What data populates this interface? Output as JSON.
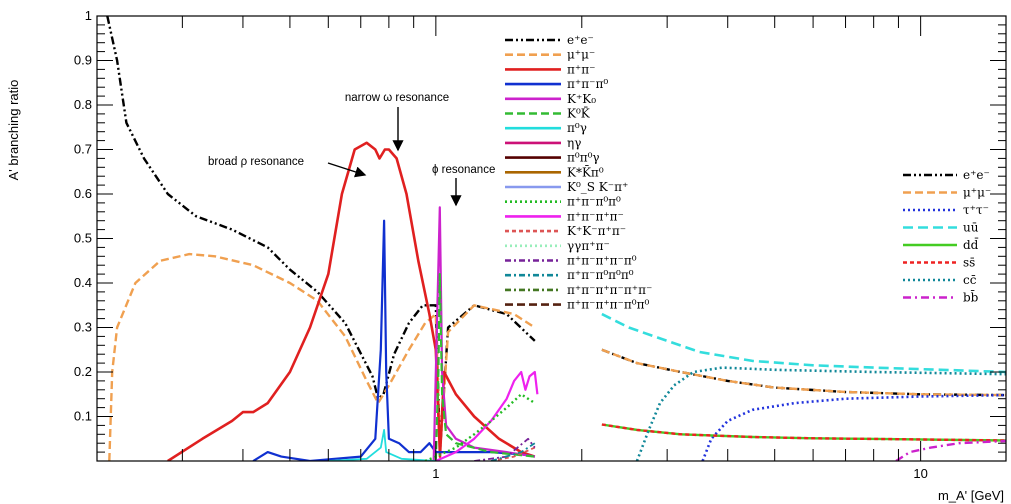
{
  "chart_data": {
    "type": "line",
    "xlabel": "m_A' [GeV]",
    "ylabel": "A' branching ratio",
    "x_scale": "log",
    "xlim": [
      0.2,
      15
    ],
    "ylim": [
      0,
      1
    ],
    "x_ticks": [
      {
        "value": 1,
        "label": "1"
      },
      {
        "value": 10,
        "label": "10"
      }
    ],
    "y_ticks": [
      {
        "value": 0.1,
        "label": "0.1"
      },
      {
        "value": 0.2,
        "label": "0.2"
      },
      {
        "value": 0.3,
        "label": "0.3"
      },
      {
        "value": 0.4,
        "label": "0.4"
      },
      {
        "value": 0.5,
        "label": "0.5"
      },
      {
        "value": 0.6,
        "label": "0.6"
      },
      {
        "value": 0.7,
        "label": "0.7"
      },
      {
        "value": 0.8,
        "label": "0.8"
      },
      {
        "value": 0.9,
        "label": "0.9"
      },
      {
        "value": 1.0,
        "label": "1"
      }
    ],
    "annotations": [
      {
        "text": "narrow ω resonance",
        "x": 0.78,
        "y": 0.71
      },
      {
        "text": "broad ρ resonance",
        "x": 0.64,
        "y": 0.66
      },
      {
        "text": "ϕ resonance",
        "x": 1.02,
        "y": 0.58
      }
    ],
    "legend_hadronic": [
      {
        "label": "e⁺e⁻",
        "color": "#000000",
        "dash": "8,3,2,3,2,3"
      },
      {
        "label": "μ⁺μ⁻",
        "color": "#f0a050",
        "dash": "8,4"
      },
      {
        "label": "π⁺π⁻",
        "color": "#e02020",
        "dash": ""
      },
      {
        "label": "π⁺π⁻π⁰",
        "color": "#1030d0",
        "dash": ""
      },
      {
        "label": "K⁺K₀",
        "color": "#cc22cc",
        "dash": ""
      },
      {
        "label": "K⁰K̄",
        "color": "#33bb33",
        "dash": "8,4"
      },
      {
        "label": "π⁰γ",
        "color": "#22dddd",
        "dash": ""
      },
      {
        "label": "ηγ",
        "color": "#cc1177",
        "dash": ""
      },
      {
        "label": "π⁰π⁰γ",
        "color": "#550000",
        "dash": ""
      },
      {
        "label": "K*K̄π⁰",
        "color": "#aa6600",
        "dash": ""
      },
      {
        "label": "K⁰_S K⁻π⁺",
        "color": "#8899ee",
        "dash": ""
      },
      {
        "label": "π⁺π⁻π⁰π⁰",
        "color": "#22bb22",
        "dash": "2,3"
      },
      {
        "label": "π⁺π⁻π⁺π⁻",
        "color": "#ee22ee",
        "dash": ""
      },
      {
        "label": "K⁺K⁻π⁺π⁻",
        "color": "#dd5555",
        "dash": "4,3"
      },
      {
        "label": "γγπ⁺π⁻",
        "color": "#99eebb",
        "dash": "2,3"
      },
      {
        "label": "π⁺π⁻π⁺π⁻π⁰",
        "color": "#772299",
        "dash": "6,3,2,3"
      },
      {
        "label": "π⁺π⁻π⁰π⁰π⁰",
        "color": "#118899",
        "dash": "6,3,2,3"
      },
      {
        "label": "π⁺π⁻π⁺π⁻π⁺π⁻",
        "color": "#447722",
        "dash": "6,3,2,3"
      },
      {
        "label": "π⁺π⁻π⁺π⁻π⁰π⁰",
        "color": "#552211",
        "dash": "8,4"
      }
    ],
    "legend_quark": [
      {
        "label": "e⁺e⁻",
        "color": "#000000",
        "dash": "8,3,2,3,2,3"
      },
      {
        "label": "μ⁺μ⁻",
        "color": "#f0a050",
        "dash": "8,4"
      },
      {
        "label": "τ⁺τ⁻",
        "color": "#2233dd",
        "dash": "2,3"
      },
      {
        "label": "uū",
        "color": "#33dddd",
        "dash": "10,5"
      },
      {
        "label": "dd̄",
        "color": "#44cc22",
        "dash": ""
      },
      {
        "label": "ss̄",
        "color": "#ee2222",
        "dash": "4,3"
      },
      {
        "label": "cc̄",
        "color": "#118899",
        "dash": "2,3"
      },
      {
        "label": "bb̄",
        "color": "#cc22cc",
        "dash": "8,4,2,4"
      }
    ],
    "series": [
      {
        "name": "e⁺e⁻",
        "color": "#000000",
        "dash": "8,3,2,3,2,3",
        "width": 2.4,
        "points": [
          [
            0.21,
            1.0
          ],
          [
            0.22,
            0.9
          ],
          [
            0.23,
            0.76
          ],
          [
            0.25,
            0.68
          ],
          [
            0.28,
            0.6
          ],
          [
            0.32,
            0.55
          ],
          [
            0.38,
            0.52
          ],
          [
            0.45,
            0.48
          ],
          [
            0.5,
            0.43
          ],
          [
            0.57,
            0.38
          ],
          [
            0.65,
            0.31
          ],
          [
            0.74,
            0.19
          ],
          [
            0.76,
            0.14
          ],
          [
            0.78,
            0.15
          ],
          [
            0.82,
            0.24
          ],
          [
            0.88,
            0.31
          ],
          [
            0.94,
            0.35
          ],
          [
            1.0,
            0.35
          ],
          [
            1.02,
            0.02
          ],
          [
            1.06,
            0.3
          ],
          [
            1.2,
            0.35
          ],
          [
            1.4,
            0.33
          ],
          [
            1.6,
            0.27
          ]
        ]
      },
      {
        "name": "e⁺e⁻ high",
        "color": "#000000",
        "dash": "8,3,2,3,2,3",
        "width": 2.4,
        "points": [
          [
            2.2,
            0.25
          ],
          [
            2.6,
            0.22
          ],
          [
            3.2,
            0.2
          ],
          [
            4.0,
            0.18
          ],
          [
            5.0,
            0.165
          ],
          [
            7.0,
            0.155
          ],
          [
            10,
            0.15
          ],
          [
            15,
            0.148
          ]
        ]
      },
      {
        "name": "μ⁺μ⁻",
        "color": "#f0a050",
        "dash": "8,4",
        "width": 2.4,
        "points": [
          [
            0.212,
            0.0
          ],
          [
            0.215,
            0.2
          ],
          [
            0.22,
            0.3
          ],
          [
            0.24,
            0.4
          ],
          [
            0.27,
            0.45
          ],
          [
            0.31,
            0.465
          ],
          [
            0.35,
            0.46
          ],
          [
            0.42,
            0.44
          ],
          [
            0.5,
            0.4
          ],
          [
            0.57,
            0.36
          ],
          [
            0.65,
            0.28
          ],
          [
            0.72,
            0.18
          ],
          [
            0.76,
            0.13
          ],
          [
            0.8,
            0.17
          ],
          [
            0.88,
            0.25
          ],
          [
            0.95,
            0.31
          ],
          [
            1.0,
            0.33
          ],
          [
            1.02,
            0.02
          ],
          [
            1.06,
            0.29
          ],
          [
            1.2,
            0.35
          ],
          [
            1.45,
            0.33
          ],
          [
            1.6,
            0.3
          ]
        ]
      },
      {
        "name": "μ⁺μ⁻ high",
        "color": "#f0a050",
        "dash": "8,4",
        "width": 2.4,
        "points": [
          [
            2.2,
            0.25
          ],
          [
            2.6,
            0.22
          ],
          [
            3.2,
            0.2
          ],
          [
            4.0,
            0.18
          ],
          [
            5.0,
            0.165
          ],
          [
            7.0,
            0.155
          ],
          [
            10,
            0.15
          ],
          [
            15,
            0.148
          ]
        ]
      },
      {
        "name": "π⁺π⁻",
        "color": "#e02020",
        "dash": "",
        "width": 2.6,
        "points": [
          [
            0.28,
            0.0
          ],
          [
            0.33,
            0.05
          ],
          [
            0.38,
            0.09
          ],
          [
            0.4,
            0.11
          ],
          [
            0.42,
            0.11
          ],
          [
            0.45,
            0.13
          ],
          [
            0.5,
            0.2
          ],
          [
            0.55,
            0.3
          ],
          [
            0.6,
            0.42
          ],
          [
            0.64,
            0.6
          ],
          [
            0.68,
            0.7
          ],
          [
            0.72,
            0.715
          ],
          [
            0.75,
            0.7
          ],
          [
            0.765,
            0.68
          ],
          [
            0.775,
            0.69
          ],
          [
            0.785,
            0.7
          ],
          [
            0.8,
            0.7
          ],
          [
            0.83,
            0.68
          ],
          [
            0.87,
            0.6
          ],
          [
            0.92,
            0.45
          ],
          [
            0.97,
            0.33
          ],
          [
            1.0,
            0.25
          ],
          [
            1.02,
            0.01
          ],
          [
            1.04,
            0.2
          ],
          [
            1.1,
            0.15
          ],
          [
            1.2,
            0.1
          ],
          [
            1.35,
            0.05
          ],
          [
            1.5,
            0.02
          ],
          [
            1.6,
            0.01
          ]
        ]
      },
      {
        "name": "π⁺π⁻π⁰",
        "color": "#1030d0",
        "dash": "",
        "width": 2.2,
        "points": [
          [
            0.42,
            0.0
          ],
          [
            0.45,
            0.02
          ],
          [
            0.48,
            0.01
          ],
          [
            0.55,
            0.0
          ],
          [
            0.7,
            0.01
          ],
          [
            0.75,
            0.05
          ],
          [
            0.77,
            0.25
          ],
          [
            0.782,
            0.54
          ],
          [
            0.79,
            0.2
          ],
          [
            0.8,
            0.05
          ],
          [
            0.84,
            0.04
          ],
          [
            0.88,
            0.02
          ],
          [
            0.93,
            0.02
          ],
          [
            0.97,
            0.04
          ],
          [
            1.0,
            0.02
          ],
          [
            1.1,
            0.02
          ],
          [
            1.3,
            0.02
          ],
          [
            1.5,
            0.015
          ],
          [
            1.6,
            0.01
          ]
        ]
      },
      {
        "name": "K⁺K₀",
        "color": "#cc22cc",
        "dash": "",
        "width": 2.2,
        "points": [
          [
            0.99,
            0.0
          ],
          [
            1.005,
            0.3
          ],
          [
            1.019,
            0.57
          ],
          [
            1.03,
            0.2
          ],
          [
            1.05,
            0.08
          ],
          [
            1.1,
            0.05
          ],
          [
            1.2,
            0.03
          ],
          [
            1.4,
            0.02
          ],
          [
            1.6,
            0.01
          ]
        ]
      },
      {
        "name": "K⁰K̄",
        "color": "#33bb33",
        "dash": "8,4",
        "width": 2.2,
        "points": [
          [
            1.0,
            0.0
          ],
          [
            1.012,
            0.2
          ],
          [
            1.019,
            0.42
          ],
          [
            1.03,
            0.15
          ],
          [
            1.05,
            0.06
          ],
          [
            1.1,
            0.04
          ],
          [
            1.3,
            0.02
          ],
          [
            1.6,
            0.01
          ]
        ]
      },
      {
        "name": "π⁰γ",
        "color": "#22dddd",
        "dash": "",
        "width": 1.8,
        "points": [
          [
            0.6,
            0.0
          ],
          [
            0.72,
            0.005
          ],
          [
            0.77,
            0.03
          ],
          [
            0.782,
            0.07
          ],
          [
            0.79,
            0.02
          ],
          [
            0.85,
            0.005
          ],
          [
            1.0,
            0.0
          ]
        ]
      },
      {
        "name": "π⁺π⁻π⁺π⁻",
        "color": "#ee22ee",
        "dash": "",
        "width": 2.2,
        "points": [
          [
            1.0,
            0.0
          ],
          [
            1.1,
            0.02
          ],
          [
            1.2,
            0.05
          ],
          [
            1.3,
            0.09
          ],
          [
            1.4,
            0.14
          ],
          [
            1.45,
            0.18
          ],
          [
            1.5,
            0.2
          ],
          [
            1.53,
            0.16
          ],
          [
            1.56,
            0.19
          ],
          [
            1.6,
            0.2
          ],
          [
            1.62,
            0.15
          ]
        ]
      },
      {
        "name": "π⁺π⁻π⁰π⁰",
        "color": "#22bb22",
        "dash": "2,3",
        "width": 2.4,
        "points": [
          [
            0.95,
            0.0
          ],
          [
            1.0,
            0.01
          ],
          [
            1.1,
            0.03
          ],
          [
            1.2,
            0.06
          ],
          [
            1.3,
            0.09
          ],
          [
            1.4,
            0.12
          ],
          [
            1.5,
            0.15
          ],
          [
            1.6,
            0.13
          ]
        ]
      },
      {
        "name": "K⁺K⁻π⁺π⁻",
        "color": "#dd5555",
        "dash": "4,3",
        "width": 1.8,
        "points": [
          [
            1.3,
            0.0
          ],
          [
            1.45,
            0.01
          ],
          [
            1.6,
            0.03
          ]
        ]
      },
      {
        "name": "π⁺π⁻π⁺π⁻π⁰",
        "color": "#772299",
        "dash": "6,3,2,3",
        "width": 1.8,
        "points": [
          [
            1.2,
            0.0
          ],
          [
            1.4,
            0.01
          ],
          [
            1.55,
            0.05
          ],
          [
            1.6,
            0.03
          ]
        ]
      },
      {
        "name": "π⁺π⁻π⁰π⁰π⁰",
        "color": "#118899",
        "dash": "6,3,2,3",
        "width": 1.8,
        "points": [
          [
            1.3,
            0.0
          ],
          [
            1.5,
            0.02
          ],
          [
            1.6,
            0.04
          ]
        ]
      },
      {
        "name": "τ⁺τ⁻",
        "color": "#2233dd",
        "dash": "2,3",
        "width": 2.6,
        "points": [
          [
            3.55,
            0.0
          ],
          [
            3.7,
            0.05
          ],
          [
            4.0,
            0.09
          ],
          [
            4.5,
            0.115
          ],
          [
            5.5,
            0.13
          ],
          [
            7.0,
            0.14
          ],
          [
            10,
            0.145
          ],
          [
            15,
            0.148
          ]
        ]
      },
      {
        "name": "uū",
        "color": "#33dddd",
        "dash": "10,5",
        "width": 2.6,
        "points": [
          [
            2.2,
            0.33
          ],
          [
            2.5,
            0.3
          ],
          [
            3.0,
            0.27
          ],
          [
            3.5,
            0.245
          ],
          [
            4.5,
            0.225
          ],
          [
            6.0,
            0.215
          ],
          [
            8.0,
            0.21
          ],
          [
            11,
            0.205
          ],
          [
            15,
            0.2
          ]
        ]
      },
      {
        "name": "dd̄",
        "color": "#44cc22",
        "dash": "",
        "width": 2.4,
        "points": [
          [
            2.2,
            0.082
          ],
          [
            2.6,
            0.07
          ],
          [
            3.2,
            0.06
          ],
          [
            4.5,
            0.054
          ],
          [
            6.0,
            0.051
          ],
          [
            9.0,
            0.049
          ],
          [
            15,
            0.046
          ]
        ]
      },
      {
        "name": "ss̄",
        "color": "#ee2222",
        "dash": "4,3",
        "width": 2.4,
        "points": [
          [
            2.2,
            0.082
          ],
          [
            2.6,
            0.07
          ],
          [
            3.2,
            0.06
          ],
          [
            4.5,
            0.054
          ],
          [
            6.0,
            0.051
          ],
          [
            9.0,
            0.049
          ],
          [
            15,
            0.046
          ]
        ]
      },
      {
        "name": "cc̄",
        "color": "#118899",
        "dash": "2,3",
        "width": 2.6,
        "points": [
          [
            2.6,
            0.0
          ],
          [
            2.75,
            0.07
          ],
          [
            2.9,
            0.13
          ],
          [
            3.1,
            0.17
          ],
          [
            3.4,
            0.2
          ],
          [
            3.9,
            0.21
          ],
          [
            5.0,
            0.205
          ],
          [
            8.0,
            0.2
          ],
          [
            15,
            0.195
          ]
        ]
      },
      {
        "name": "bb̄",
        "color": "#cc22cc",
        "dash": "8,4,2,4",
        "width": 2.4,
        "points": [
          [
            8.9,
            0.0
          ],
          [
            9.5,
            0.02
          ],
          [
            10.5,
            0.03
          ],
          [
            12,
            0.04
          ],
          [
            15,
            0.045
          ]
        ]
      }
    ]
  }
}
